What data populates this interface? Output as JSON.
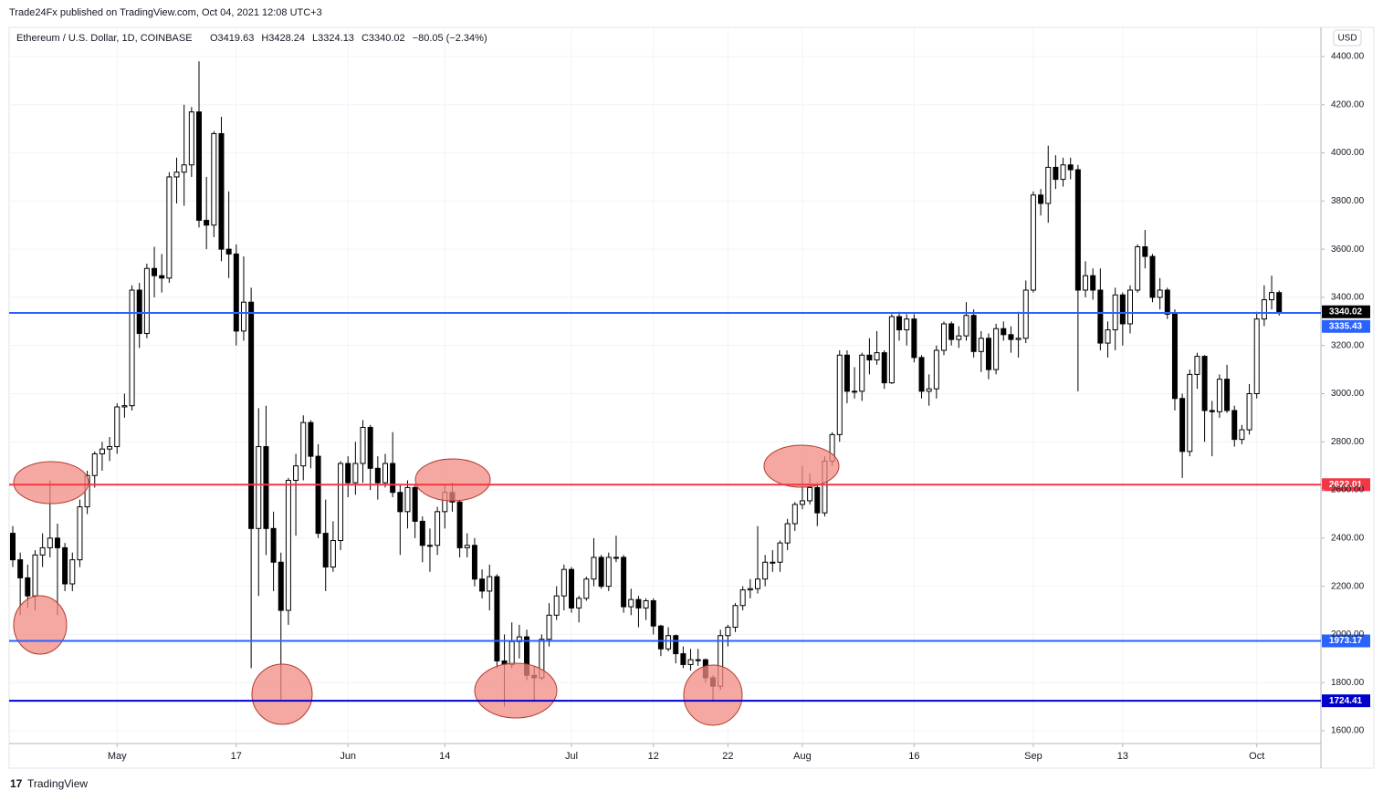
{
  "header": "Trade24Fx published on TradingView.com, Oct 04, 2021 12:08 UTC+3",
  "footer": "TradingView",
  "chart_data": {
    "type": "candlestick",
    "title": "Ethereum / U.S. Dollar, 1D, COINBASE",
    "legend": [
      "O3419.63",
      "H3428.24",
      "L3324.13",
      "C3340.02",
      "−80.05 (−2.34%)"
    ],
    "currency": "USD",
    "ylim": [
      1600,
      4400
    ],
    "yticks": [
      {
        "value": 1600,
        "label": "1600.00"
      },
      {
        "value": 1800,
        "label": "1800.00"
      },
      {
        "value": 2000,
        "label": "2000.00"
      },
      {
        "value": 2200,
        "label": "2200.00"
      },
      {
        "value": 2400,
        "label": "2400.00"
      },
      {
        "value": 2600,
        "label": "2600.00"
      },
      {
        "value": 2800,
        "label": "2800.00"
      },
      {
        "value": 3000,
        "label": "3000.00"
      },
      {
        "value": 3200,
        "label": "3200.00"
      },
      {
        "value": 3400,
        "label": "3400.00"
      },
      {
        "value": 3600,
        "label": "3600.00"
      },
      {
        "value": 3800,
        "label": "3800.00"
      },
      {
        "value": 4000,
        "label": "4000.00"
      },
      {
        "value": 4200,
        "label": "4200.00"
      },
      {
        "value": 4400,
        "label": "4400.00"
      }
    ],
    "xticks": [
      {
        "value": 14,
        "label": "May"
      },
      {
        "value": 30,
        "label": "17"
      },
      {
        "value": 45,
        "label": "Jun"
      },
      {
        "value": 58,
        "label": "14"
      },
      {
        "value": 75,
        "label": "Jul"
      },
      {
        "value": 86,
        "label": "12"
      },
      {
        "value": 96,
        "label": "22"
      },
      {
        "value": 106,
        "label": "Aug"
      },
      {
        "value": 121,
        "label": "16"
      },
      {
        "value": 137,
        "label": "Sep"
      },
      {
        "value": 149,
        "label": "13"
      },
      {
        "value": 167,
        "label": "Oct"
      }
    ],
    "grid": true,
    "up_color": "#ffffff",
    "down_color": "#000000",
    "wick_color": "#000000",
    "last_price": 3340.02,
    "levels": [
      {
        "value": 3335.43,
        "color": "#2962ff"
      },
      {
        "value": 2622.01,
        "color": "#f23645"
      },
      {
        "value": 1973.17,
        "color": "#2962ff"
      },
      {
        "value": 1724.41,
        "color": "#0000cc"
      }
    ],
    "ohlc": [
      [
        2420,
        2450,
        2280,
        2310
      ],
      [
        2310,
        2340,
        2080,
        2235
      ],
      [
        2235,
        2290,
        2110,
        2160
      ],
      [
        2160,
        2350,
        2100,
        2330
      ],
      [
        2330,
        2420,
        2280,
        2360
      ],
      [
        2360,
        2640,
        2320,
        2400
      ],
      [
        2400,
        2460,
        2080,
        2360
      ],
      [
        2360,
        2380,
        2180,
        2210
      ],
      [
        2210,
        2340,
        2180,
        2310
      ],
      [
        2310,
        2560,
        2280,
        2530
      ],
      [
        2530,
        2680,
        2500,
        2660
      ],
      [
        2660,
        2760,
        2610,
        2750
      ],
      [
        2750,
        2800,
        2680,
        2770
      ],
      [
        2770,
        2820,
        2720,
        2780
      ],
      [
        2780,
        2960,
        2750,
        2945
      ],
      [
        2945,
        3000,
        2900,
        2950
      ],
      [
        2950,
        3450,
        2930,
        3430
      ],
      [
        3430,
        3460,
        3190,
        3250
      ],
      [
        3250,
        3540,
        3230,
        3520
      ],
      [
        3520,
        3610,
        3400,
        3490
      ],
      [
        3490,
        3580,
        3420,
        3480
      ],
      [
        3480,
        3920,
        3460,
        3900
      ],
      [
        3900,
        3980,
        3790,
        3920
      ],
      [
        3920,
        4200,
        3780,
        3950
      ],
      [
        3950,
        4190,
        3900,
        4170
      ],
      [
        4170,
        4380,
        3690,
        3720
      ],
      [
        3720,
        3900,
        3600,
        3700
      ],
      [
        3700,
        4090,
        3650,
        4080
      ],
      [
        4080,
        4150,
        3550,
        3600
      ],
      [
        3600,
        3840,
        3480,
        3580
      ],
      [
        3580,
        3620,
        3200,
        3260
      ],
      [
        3260,
        3570,
        3220,
        3380
      ],
      [
        3380,
        3440,
        1860,
        2440
      ],
      [
        2440,
        2940,
        2160,
        2780
      ],
      [
        2780,
        2950,
        2330,
        2440
      ],
      [
        2440,
        2510,
        2180,
        2300
      ],
      [
        2300,
        2340,
        1730,
        2100
      ],
      [
        2100,
        2650,
        2040,
        2640
      ],
      [
        2640,
        2750,
        2410,
        2700
      ],
      [
        2700,
        2910,
        2640,
        2880
      ],
      [
        2880,
        2890,
        2690,
        2740
      ],
      [
        2740,
        2790,
        2400,
        2420
      ],
      [
        2420,
        2560,
        2180,
        2280
      ],
      [
        2280,
        2470,
        2260,
        2390
      ],
      [
        2390,
        2720,
        2350,
        2710
      ],
      [
        2710,
        2740,
        2570,
        2630
      ],
      [
        2630,
        2800,
        2580,
        2710
      ],
      [
        2710,
        2890,
        2630,
        2860
      ],
      [
        2860,
        2870,
        2600,
        2690
      ],
      [
        2690,
        2740,
        2560,
        2630
      ],
      [
        2630,
        2750,
        2610,
        2710
      ],
      [
        2710,
        2840,
        2570,
        2590
      ],
      [
        2590,
        2620,
        2330,
        2510
      ],
      [
        2510,
        2640,
        2440,
        2610
      ],
      [
        2610,
        2620,
        2400,
        2470
      ],
      [
        2470,
        2490,
        2300,
        2370
      ],
      [
        2370,
        2440,
        2260,
        2370
      ],
      [
        2370,
        2530,
        2330,
        2510
      ],
      [
        2510,
        2620,
        2440,
        2590
      ],
      [
        2590,
        2630,
        2510,
        2550
      ],
      [
        2550,
        2560,
        2320,
        2360
      ],
      [
        2360,
        2420,
        2320,
        2370
      ],
      [
        2370,
        2400,
        2200,
        2230
      ],
      [
        2230,
        2270,
        2150,
        2180
      ],
      [
        2180,
        2290,
        2100,
        2240
      ],
      [
        2240,
        2250,
        1860,
        1890
      ],
      [
        1890,
        2000,
        1700,
        1875
      ],
      [
        1875,
        2050,
        1860,
        1970
      ],
      [
        1970,
        2040,
        1900,
        1990
      ],
      [
        1990,
        2020,
        1810,
        1830
      ],
      [
        1830,
        1870,
        1720,
        1820
      ],
      [
        1820,
        2000,
        1810,
        1980
      ],
      [
        1980,
        2130,
        1950,
        2080
      ],
      [
        2080,
        2200,
        2060,
        2160
      ],
      [
        2160,
        2290,
        2100,
        2270
      ],
      [
        2270,
        2280,
        2090,
        2110
      ],
      [
        2110,
        2160,
        2050,
        2150
      ],
      [
        2150,
        2240,
        2140,
        2230
      ],
      [
        2230,
        2400,
        2200,
        2320
      ],
      [
        2320,
        2330,
        2190,
        2200
      ],
      [
        2200,
        2340,
        2180,
        2320
      ],
      [
        2320,
        2410,
        2300,
        2320
      ],
      [
        2320,
        2330,
        2090,
        2115
      ],
      [
        2115,
        2190,
        2080,
        2145
      ],
      [
        2145,
        2160,
        2030,
        2110
      ],
      [
        2110,
        2150,
        2060,
        2140
      ],
      [
        2140,
        2150,
        2000,
        2035
      ],
      [
        2035,
        2040,
        1910,
        1940
      ],
      [
        1940,
        2030,
        1930,
        1995
      ],
      [
        1995,
        2000,
        1880,
        1920
      ],
      [
        1920,
        1950,
        1860,
        1875
      ],
      [
        1875,
        1940,
        1850,
        1895
      ],
      [
        1895,
        1940,
        1870,
        1895
      ],
      [
        1895,
        1900,
        1800,
        1820
      ],
      [
        1820,
        1830,
        1720,
        1785
      ],
      [
        1785,
        2020,
        1770,
        1995
      ],
      [
        1995,
        2040,
        1950,
        2030
      ],
      [
        2030,
        2130,
        2010,
        2120
      ],
      [
        2120,
        2200,
        2100,
        2185
      ],
      [
        2185,
        2230,
        2150,
        2190
      ],
      [
        2190,
        2450,
        2170,
        2230
      ],
      [
        2230,
        2330,
        2200,
        2300
      ],
      [
        2300,
        2350,
        2260,
        2300
      ],
      [
        2300,
        2390,
        2260,
        2380
      ],
      [
        2380,
        2480,
        2350,
        2460
      ],
      [
        2460,
        2550,
        2430,
        2540
      ],
      [
        2540,
        2700,
        2520,
        2555
      ],
      [
        2555,
        2670,
        2540,
        2610
      ],
      [
        2610,
        2630,
        2450,
        2505
      ],
      [
        2505,
        2740,
        2490,
        2720
      ],
      [
        2720,
        2840,
        2700,
        2830
      ],
      [
        2830,
        3180,
        2800,
        3160
      ],
      [
        3160,
        3180,
        2960,
        3010
      ],
      [
        3010,
        3110,
        2980,
        3010
      ],
      [
        3010,
        3170,
        2970,
        3160
      ],
      [
        3160,
        3230,
        3080,
        3140
      ],
      [
        3140,
        3260,
        3120,
        3170
      ],
      [
        3170,
        3180,
        3020,
        3045
      ],
      [
        3045,
        3330,
        3040,
        3320
      ],
      [
        3320,
        3340,
        3220,
        3265
      ],
      [
        3265,
        3330,
        3200,
        3310
      ],
      [
        3310,
        3330,
        3130,
        3150
      ],
      [
        3150,
        3160,
        2980,
        3010
      ],
      [
        3010,
        3080,
        2950,
        3020
      ],
      [
        3020,
        3200,
        2980,
        3180
      ],
      [
        3180,
        3300,
        3160,
        3290
      ],
      [
        3290,
        3300,
        3200,
        3225
      ],
      [
        3225,
        3280,
        3190,
        3240
      ],
      [
        3240,
        3380,
        3220,
        3325
      ],
      [
        3325,
        3350,
        3150,
        3175
      ],
      [
        3175,
        3260,
        3090,
        3230
      ],
      [
        3230,
        3250,
        3060,
        3100
      ],
      [
        3100,
        3290,
        3080,
        3270
      ],
      [
        3270,
        3300,
        3220,
        3245
      ],
      [
        3245,
        3280,
        3170,
        3225
      ],
      [
        3225,
        3340,
        3150,
        3230
      ],
      [
        3230,
        3470,
        3210,
        3430
      ],
      [
        3430,
        3840,
        3420,
        3825
      ],
      [
        3825,
        3850,
        3740,
        3790
      ],
      [
        3790,
        4030,
        3710,
        3940
      ],
      [
        3940,
        3990,
        3850,
        3890
      ],
      [
        3890,
        3980,
        3860,
        3950
      ],
      [
        3950,
        3980,
        3890,
        3930
      ],
      [
        3930,
        3950,
        3010,
        3430
      ],
      [
        3430,
        3550,
        3400,
        3490
      ],
      [
        3490,
        3520,
        3390,
        3430
      ],
      [
        3430,
        3520,
        3180,
        3210
      ],
      [
        3210,
        3300,
        3150,
        3265
      ],
      [
        3265,
        3440,
        3180,
        3410
      ],
      [
        3410,
        3420,
        3200,
        3290
      ],
      [
        3290,
        3450,
        3250,
        3430
      ],
      [
        3430,
        3620,
        3420,
        3610
      ],
      [
        3610,
        3680,
        3520,
        3570
      ],
      [
        3570,
        3580,
        3380,
        3400
      ],
      [
        3400,
        3480,
        3350,
        3430
      ],
      [
        3430,
        3440,
        3310,
        3330
      ],
      [
        3330,
        3350,
        2930,
        2980
      ],
      [
        2980,
        3000,
        2650,
        2760
      ],
      [
        2760,
        3100,
        2740,
        3080
      ],
      [
        3080,
        3170,
        3020,
        3155
      ],
      [
        3155,
        3160,
        2800,
        2930
      ],
      [
        2930,
        2970,
        2740,
        2925
      ],
      [
        2925,
        3080,
        2900,
        3060
      ],
      [
        3060,
        3120,
        2920,
        2930
      ],
      [
        2930,
        2950,
        2780,
        2810
      ],
      [
        2810,
        2870,
        2790,
        2850
      ],
      [
        2850,
        3040,
        2830,
        3000
      ],
      [
        3000,
        3340,
        2980,
        3310
      ],
      [
        3310,
        3450,
        3280,
        3390
      ],
      [
        3390,
        3490,
        3350,
        3420
      ],
      [
        3419.63,
        3428.24,
        3324.13,
        3340.02
      ]
    ]
  }
}
